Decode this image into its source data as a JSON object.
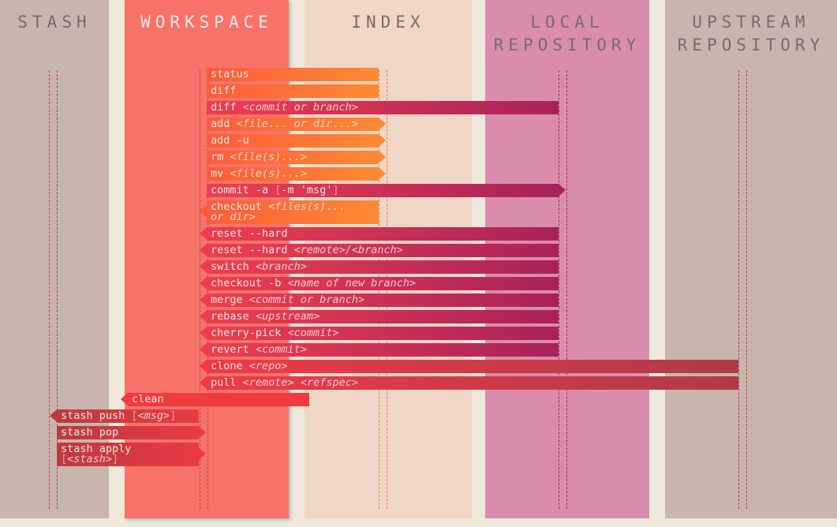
{
  "columns": {
    "stash": "STASH",
    "workspace": "WORKSPACE",
    "index": "INDEX",
    "local": "LOCAL\nREPOSITORY",
    "upstream": "UPSTREAM\nREPOSITORY"
  },
  "commands": {
    "status": {
      "name": "status"
    },
    "diff": {
      "name": "diff"
    },
    "diff_commit": {
      "name": "diff ",
      "arg": "<commit or branch>"
    },
    "add": {
      "name": "add ",
      "arg": "<file... or dir...>"
    },
    "add_u": {
      "name": "add -u"
    },
    "rm": {
      "name": "rm ",
      "arg": "<file(s)...>"
    },
    "mv": {
      "name": "mv ",
      "arg": "<file(s)...>"
    },
    "commit_a": {
      "name": "commit -a ",
      "opt1": "[",
      "arg": "-m 'msg'",
      "opt2": "]"
    },
    "checkout_files": {
      "name": "checkout ",
      "arg1": "<files(s)...",
      "arg2": "or dir>"
    },
    "reset_hard": {
      "name": "reset --hard"
    },
    "reset_hard_remote": {
      "name": "reset --hard ",
      "arg": "<remote>/<branch>"
    },
    "switch": {
      "name": "switch ",
      "arg": "<branch>"
    },
    "checkout_b": {
      "name": "checkout -b ",
      "arg": "<name of new branch>"
    },
    "merge": {
      "name": "merge ",
      "arg": "<commit or branch>"
    },
    "rebase": {
      "name": "rebase ",
      "arg": "<upstream>"
    },
    "cherry_pick": {
      "name": "cherry-pick ",
      "arg": "<commit>"
    },
    "revert": {
      "name": "revert ",
      "arg": "<commit>"
    },
    "clone": {
      "name": "clone ",
      "arg": "<repo>"
    },
    "pull": {
      "name": "pull ",
      "arg1": "<remote>",
      "arg2": "<refspec>"
    },
    "clean": {
      "name": "clean"
    },
    "stash_push": {
      "name": "stash push ",
      "opt1": "[",
      "arg": "<msg>",
      "opt2": "]"
    },
    "stash_pop": {
      "name": "stash pop"
    },
    "stash_apply": {
      "name": "stash apply",
      "opt1": "[",
      "arg": "<stash>",
      "opt2": "]"
    }
  }
}
